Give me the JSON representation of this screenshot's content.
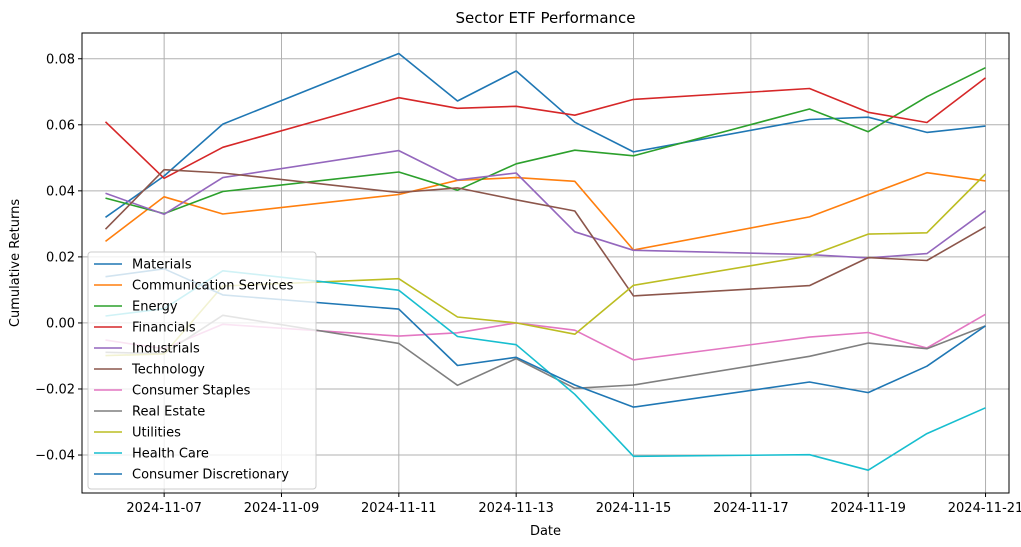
{
  "chart_data": {
    "type": "line",
    "title": "Sector ETF Performance",
    "xlabel": "Date",
    "ylabel": "Cumulative Returns",
    "x": [
      "2024-11-06",
      "2024-11-07",
      "2024-11-08",
      "2024-11-11",
      "2024-11-12",
      "2024-11-13",
      "2024-11-14",
      "2024-11-15",
      "2024-11-18",
      "2024-11-19",
      "2024-11-20",
      "2024-11-21"
    ],
    "xlim": [
      "2024-11-05T14:24",
      "2024-11-21T09:36"
    ],
    "ylim": [
      -0.0515,
      0.0878
    ],
    "x_ticks": [
      "2024-11-07",
      "2024-11-09",
      "2024-11-11",
      "2024-11-13",
      "2024-11-15",
      "2024-11-17",
      "2024-11-19",
      "2024-11-21"
    ],
    "y_ticks": [
      -0.04,
      -0.02,
      0.0,
      0.02,
      0.04,
      0.06,
      0.08
    ],
    "y_tick_labels": [
      "−0.04",
      "−0.02",
      "0.00",
      "0.02",
      "0.04",
      "0.06",
      "0.08"
    ],
    "grid": true,
    "legend_position": "lower left",
    "series": [
      {
        "name": "Materials",
        "color": "#1f77b4",
        "values": [
          0.032,
          0.0445,
          0.0602,
          0.0816,
          0.0672,
          0.0763,
          0.0608,
          0.0518,
          0.0616,
          0.0623,
          0.0577,
          0.0596
        ]
      },
      {
        "name": "Communication Services",
        "color": "#ff7f0e",
        "values": [
          0.0247,
          0.0382,
          0.033,
          0.0389,
          0.0432,
          0.044,
          0.0429,
          0.0221,
          0.0321,
          0.0388,
          0.0455,
          0.043
        ]
      },
      {
        "name": "Energy",
        "color": "#2ca02c",
        "values": [
          0.0378,
          0.0331,
          0.0398,
          0.0457,
          0.0402,
          0.0482,
          0.0523,
          0.0506,
          0.0648,
          0.0579,
          0.0685,
          0.0773
        ]
      },
      {
        "name": "Financials",
        "color": "#d62728",
        "values": [
          0.0609,
          0.0438,
          0.0532,
          0.0682,
          0.065,
          0.0656,
          0.0629,
          0.0677,
          0.071,
          0.0638,
          0.0607,
          0.0742
        ]
      },
      {
        "name": "Industrials",
        "color": "#9467bd",
        "values": [
          0.0393,
          0.0329,
          0.044,
          0.0522,
          0.0433,
          0.0454,
          0.0276,
          0.022,
          0.0207,
          0.0197,
          0.021,
          0.034
        ]
      },
      {
        "name": "Technology",
        "color": "#8c564b",
        "values": [
          0.0284,
          0.0464,
          0.0454,
          0.0395,
          0.0409,
          0.0373,
          0.0339,
          0.0082,
          0.0113,
          0.0198,
          0.0189,
          0.0291
        ]
      },
      {
        "name": "Consumer Staples",
        "color": "#e377c2",
        "values": [
          -0.0052,
          -0.0078,
          -0.0004,
          -0.004,
          -0.003,
          0.0,
          -0.0022,
          -0.0112,
          -0.0043,
          -0.0029,
          -0.0076,
          0.0026
        ]
      },
      {
        "name": "Real Estate",
        "color": "#7f7f7f",
        "values": [
          -0.0089,
          -0.0093,
          0.0023,
          -0.0062,
          -0.0189,
          -0.0108,
          -0.0198,
          -0.0188,
          -0.0101,
          -0.0061,
          -0.0078,
          -0.0009
        ]
      },
      {
        "name": "Utilities",
        "color": "#bcbd22",
        "values": [
          -0.0099,
          -0.0094,
          0.0112,
          0.0134,
          0.0018,
          0.0,
          -0.0034,
          0.0114,
          0.0203,
          0.0269,
          0.0273,
          0.0451
        ]
      },
      {
        "name": "Health Care",
        "color": "#17becf",
        "values": [
          0.0021,
          0.0043,
          0.0158,
          0.0099,
          -0.0041,
          -0.0066,
          -0.0216,
          -0.0404,
          -0.0399,
          -0.0446,
          -0.0335,
          -0.0257
        ]
      },
      {
        "name": "Consumer Discretionary",
        "color": "#1f77b4",
        "values": [
          0.014,
          0.0164,
          0.0085,
          0.0042,
          -0.0129,
          -0.0104,
          -0.0188,
          -0.0255,
          -0.0179,
          -0.0211,
          -0.0131,
          -0.0009
        ]
      }
    ]
  }
}
